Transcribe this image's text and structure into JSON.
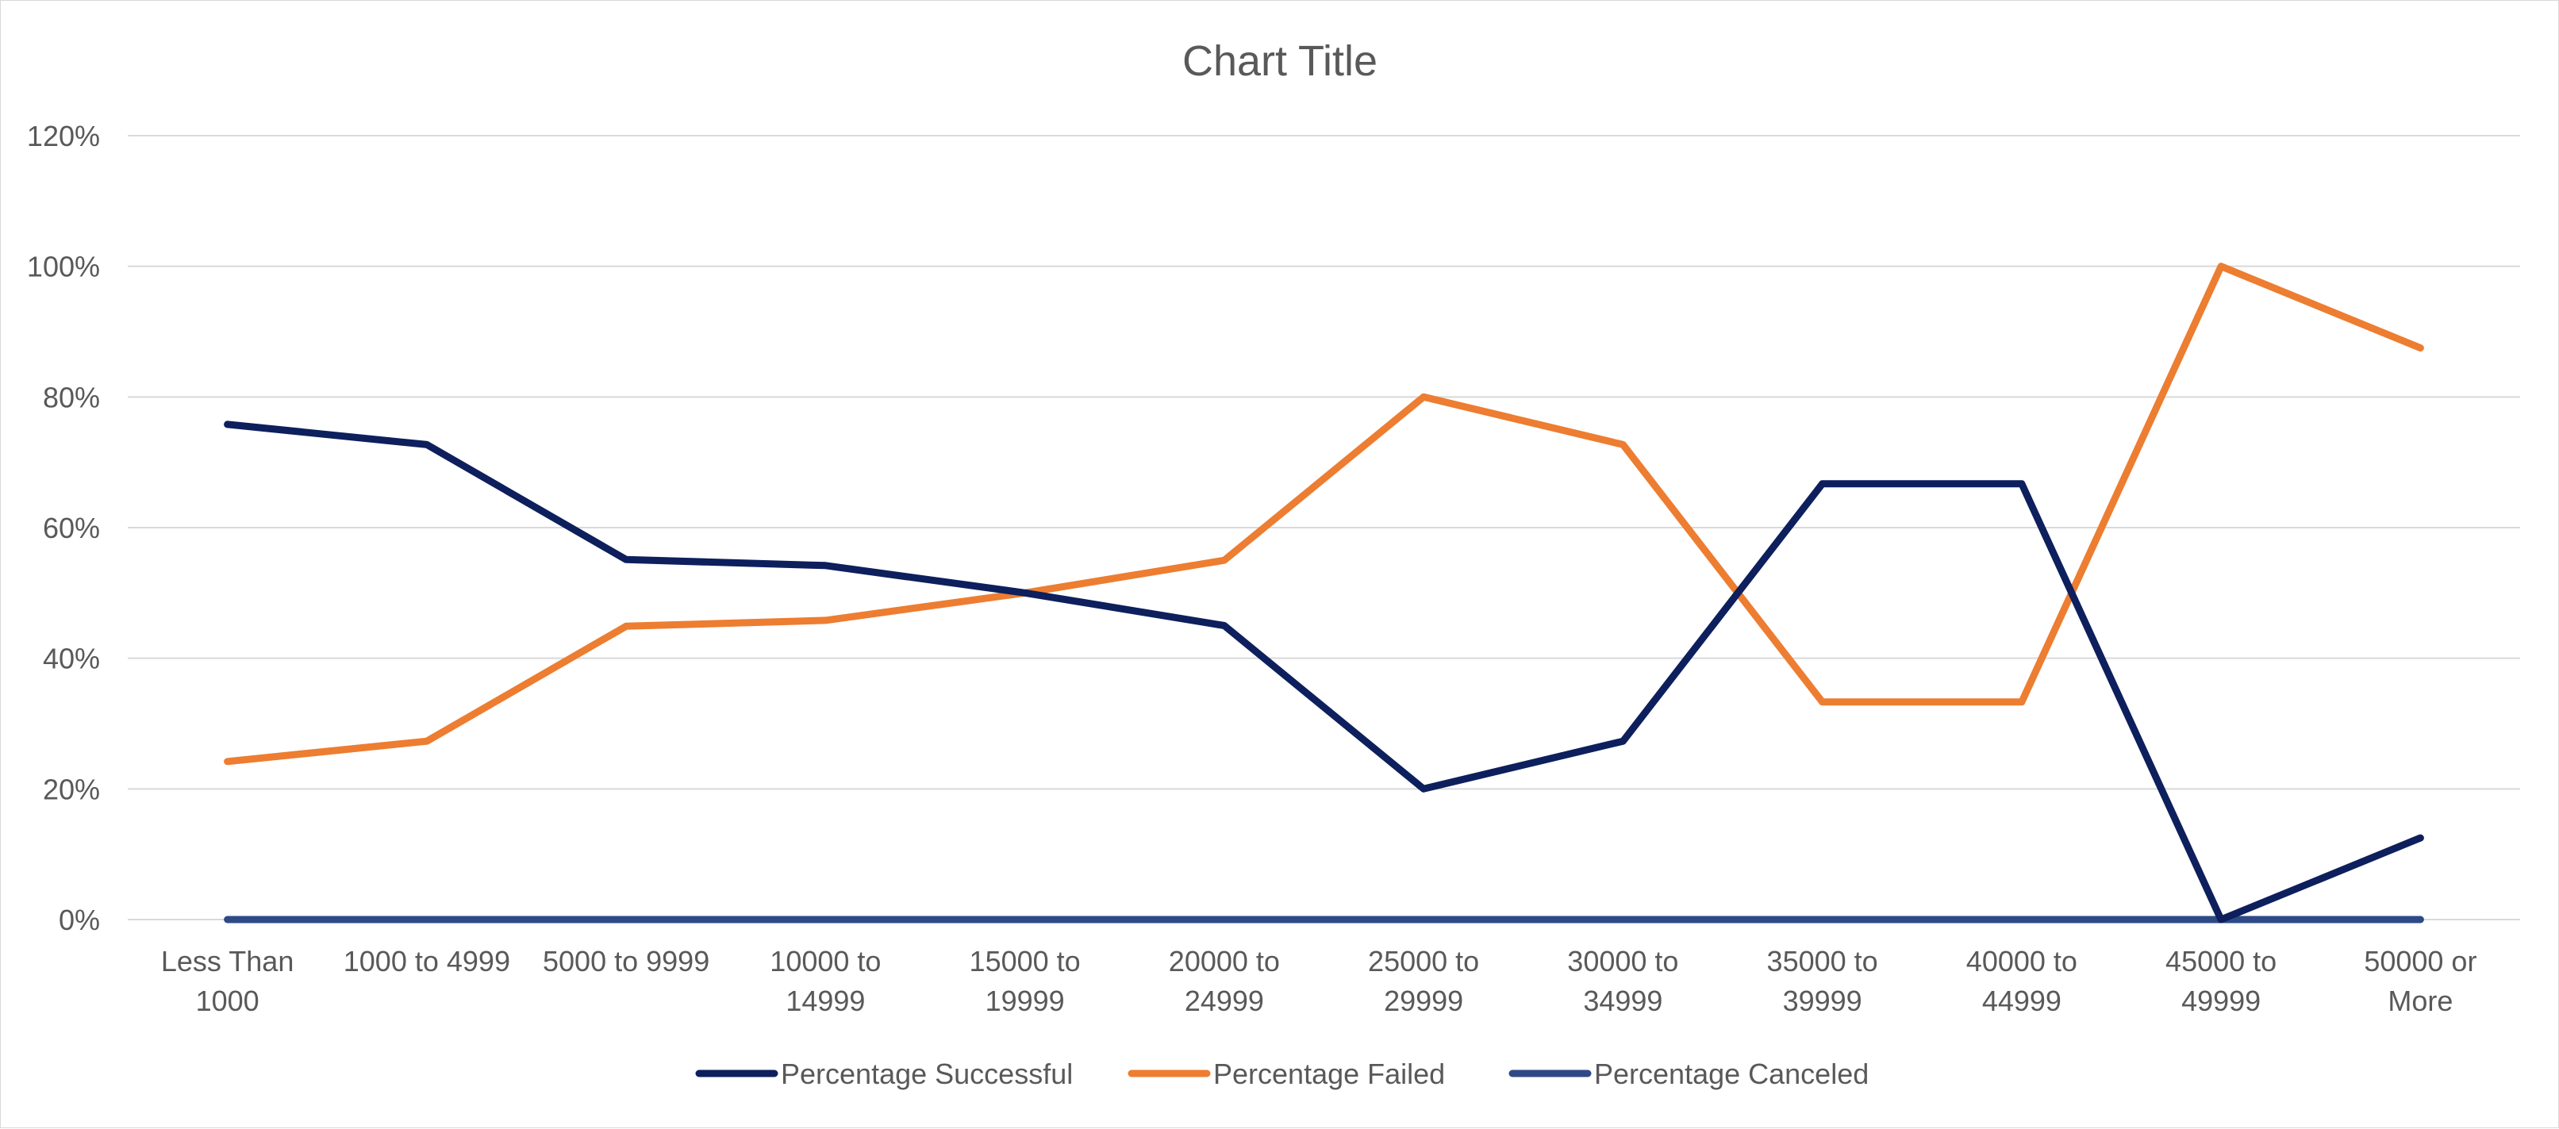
{
  "chart_data": {
    "type": "line",
    "title": "Chart Title",
    "xlabel": "",
    "ylabel": "",
    "categories": [
      [
        "Less Than",
        "1000"
      ],
      [
        "1000 to 4999"
      ],
      [
        "5000 to 9999"
      ],
      [
        "10000 to",
        "14999"
      ],
      [
        "15000 to",
        "19999"
      ],
      [
        "20000 to",
        "24999"
      ],
      [
        "25000 to",
        "29999"
      ],
      [
        "30000 to",
        "34999"
      ],
      [
        "35000 to",
        "39999"
      ],
      [
        "40000 to",
        "44999"
      ],
      [
        "45000 to",
        "49999"
      ],
      [
        "50000 or",
        "More"
      ]
    ],
    "ylim": [
      0,
      1.2
    ],
    "yticks": [
      0,
      0.2,
      0.4,
      0.6,
      0.8,
      1.0,
      1.2
    ],
    "ytick_labels": [
      "0%",
      "20%",
      "40%",
      "60%",
      "80%",
      "100%",
      "120%"
    ],
    "grid": true,
    "legend_position": "bottom",
    "series": [
      {
        "name": "Percentage Successful",
        "color": "#0d1f5c",
        "values": [
          0.758,
          0.727,
          0.551,
          0.542,
          0.5,
          0.45,
          0.2,
          0.273,
          0.667,
          0.667,
          0.0,
          0.125
        ]
      },
      {
        "name": "Percentage Failed",
        "color": "#ed7d31",
        "values": [
          0.242,
          0.273,
          0.449,
          0.458,
          0.5,
          0.55,
          0.8,
          0.727,
          0.333,
          0.333,
          1.0,
          0.875
        ]
      },
      {
        "name": "Percentage Canceled",
        "color": "#2e4a86",
        "values": [
          0,
          0,
          0,
          0,
          0,
          0,
          0,
          0,
          0,
          0,
          0,
          0
        ]
      }
    ]
  }
}
